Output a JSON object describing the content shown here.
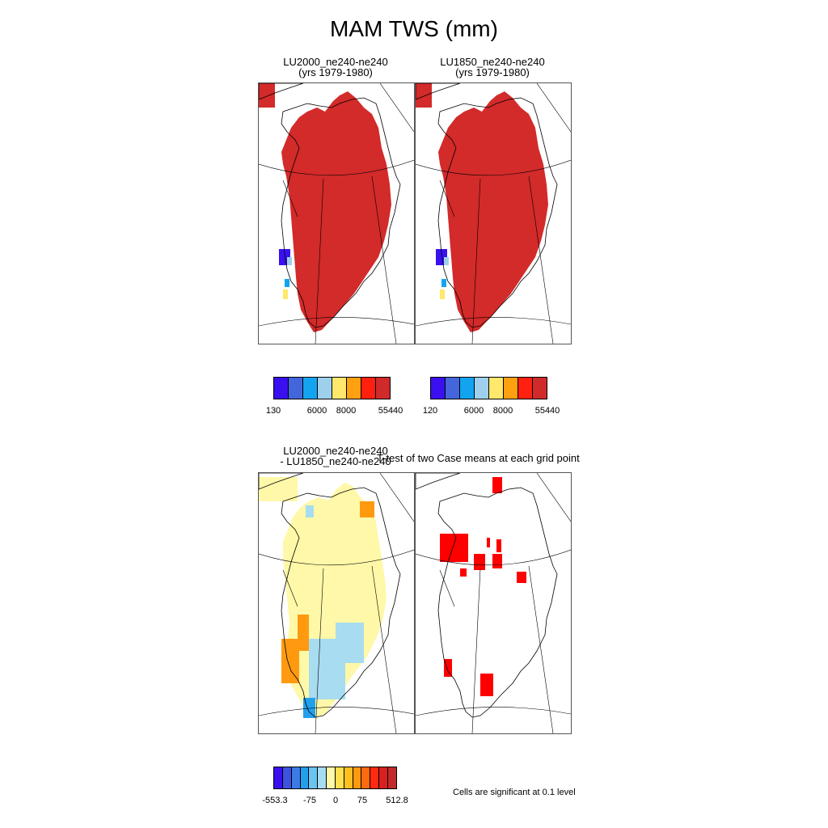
{
  "figure_title": "MAM TWS (mm)",
  "panels": [
    {
      "title_line1": "LU2000_ne240-ne240",
      "title_line2": "(yrs 1979-1980)"
    },
    {
      "title_line1": "LU1850_ne240-ne240",
      "title_line2": "(yrs 1979-1980)"
    },
    {
      "title_line1": "LU2000_ne240-ne240",
      "title_line2": "- LU1850_ne240-ne240"
    },
    {
      "title_line1": "T-test of two Case means at each grid point"
    }
  ],
  "colorbars": {
    "case1": {
      "colors": [
        "#3a10f0",
        "#4466dd",
        "#12a4f0",
        "#9ed0ee",
        "#ffe86b",
        "#ffa010",
        "#ff2010",
        "#d02a2a"
      ],
      "tick_labels": [
        "130",
        "6000",
        "8000",
        "55440"
      ]
    },
    "case2": {
      "colors": [
        "#3a10f0",
        "#4466dd",
        "#12a4f0",
        "#9ed0ee",
        "#ffe86b",
        "#ffa010",
        "#ff2010",
        "#d02a2a"
      ],
      "tick_labels": [
        "120",
        "6000",
        "8000",
        "55440"
      ]
    },
    "diff": {
      "colors": [
        "#3a10f0",
        "#3e52e0",
        "#3c7ae6",
        "#22a0ee",
        "#6ac4f0",
        "#a8dcf0",
        "#fff8a8",
        "#ffe050",
        "#ffc020",
        "#ff9a10",
        "#ff6a10",
        "#ff2a10",
        "#d82020",
        "#c02a2a"
      ],
      "tick_labels": [
        "-553.3",
        "-75",
        "0",
        "75",
        "512.8"
      ]
    }
  },
  "significance_note": "Cells are significant at 0.1 level",
  "fill_colors": {
    "tws_high": "#d32a2a",
    "diff_neutral": "#fff8a8",
    "diff_positive": "#ff9a10",
    "diff_negative": "#a8dcf0",
    "significant": "#ff0000"
  }
}
